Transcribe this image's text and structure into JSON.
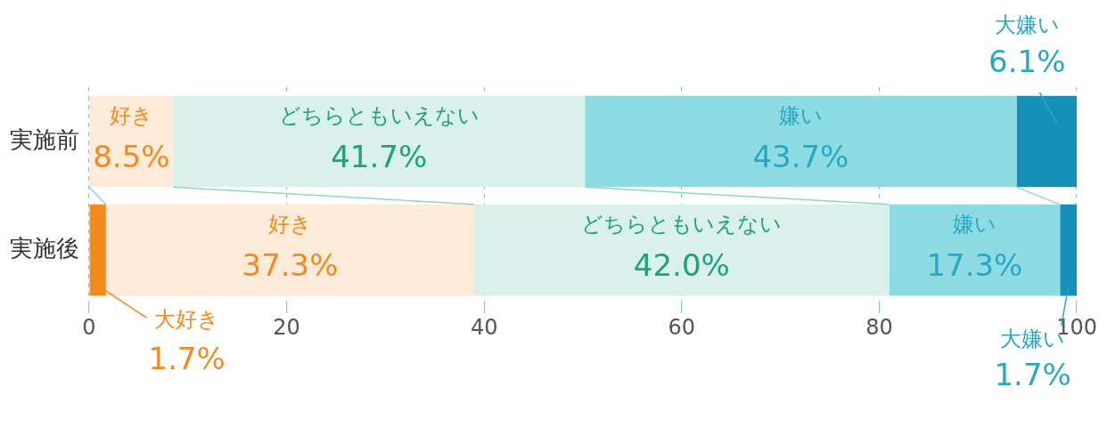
{
  "chart_data": {
    "type": "bar",
    "orientation": "horizontal",
    "stacked": true,
    "categories": [
      "実施前",
      "実施後"
    ],
    "series": [
      {
        "name": "大好き",
        "color": "#f28a1e",
        "values": [
          0,
          1.7
        ],
        "value_labels": [
          null,
          "1.7%"
        ]
      },
      {
        "name": "好き",
        "color": "#fdebd9",
        "values": [
          8.5,
          37.3
        ],
        "value_labels": [
          "8.5%",
          "37.3%"
        ]
      },
      {
        "name": "どちらともいえない",
        "color": "#d9f1ea",
        "values": [
          41.7,
          42.0
        ],
        "value_labels": [
          "41.7%",
          "42.0%"
        ]
      },
      {
        "name": "嫌い",
        "color": "#8ddbe3",
        "values": [
          43.7,
          17.3
        ],
        "value_labels": [
          "43.7%",
          "17.3%"
        ]
      },
      {
        "name": "大嫌い",
        "color": "#168fb9",
        "values": [
          6.1,
          1.7
        ],
        "value_labels": [
          "6.1%",
          "1.7%"
        ]
      }
    ],
    "xlim": [
      0,
      100
    ],
    "xticks": [
      0,
      20,
      40,
      60,
      80,
      100
    ],
    "grid": "x",
    "legend": false
  }
}
